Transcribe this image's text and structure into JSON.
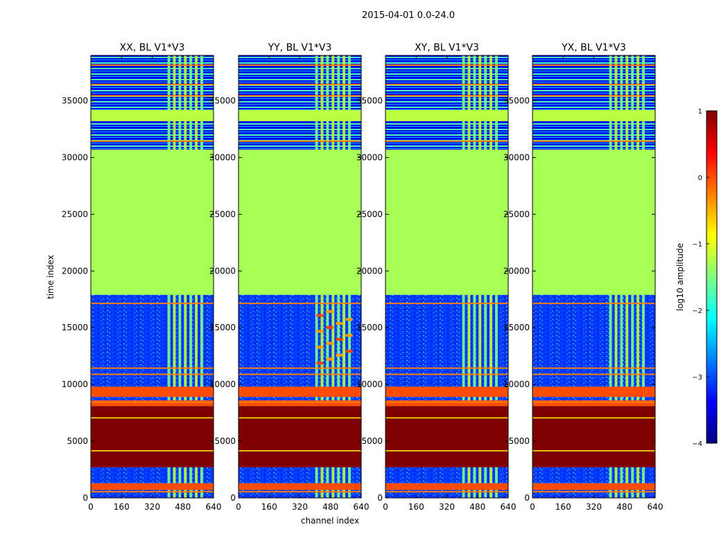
{
  "chart_data": {
    "type": "heatmap",
    "title": "2015-04-01 0.0-24.0",
    "xlabel": "channel index",
    "ylabel": "time index",
    "xlim": [
      0,
      640
    ],
    "ylim": [
      0,
      39000
    ],
    "xticks": [
      0,
      160,
      320,
      480,
      640
    ],
    "yticks": [
      0,
      5000,
      10000,
      15000,
      20000,
      25000,
      30000,
      35000
    ],
    "colorbar": {
      "label": "log10 amplitude",
      "range": [
        -4,
        1
      ],
      "ticks": [
        1,
        0,
        -1,
        -2,
        -3,
        -4
      ],
      "colormap": [
        "#00007f",
        "#0000ff",
        "#007fff",
        "#00ffff",
        "#7fff7f",
        "#ffff00",
        "#ff7f00",
        "#ff0000",
        "#7f0000"
      ]
    },
    "band_channels": [
      400,
      600
    ],
    "panels": [
      {
        "title": "XX, BL V1*V3",
        "name": "XX"
      },
      {
        "title": "YY, BL V1*V3",
        "name": "YY"
      },
      {
        "title": "XY, BL V1*V3",
        "name": "XY"
      },
      {
        "title": "YX, BL V1*V3",
        "name": "YX"
      }
    ],
    "time_regions": [
      {
        "from": 0,
        "to": 700,
        "level": -2.8,
        "desc": "noise"
      },
      {
        "from": 700,
        "to": 1300,
        "level": 0.0,
        "desc": "flag band"
      },
      {
        "from": 1300,
        "to": 2700,
        "level": -2.8,
        "desc": "noise"
      },
      {
        "from": 2700,
        "to": 8100,
        "level": 1.0,
        "desc": "saturated"
      },
      {
        "from": 8100,
        "to": 8600,
        "level": 0.0,
        "desc": "flag band"
      },
      {
        "from": 8600,
        "to": 8900,
        "level": -2.9,
        "desc": "noise"
      },
      {
        "from": 8900,
        "to": 9800,
        "level": 0.0,
        "desc": "flag band"
      },
      {
        "from": 9800,
        "to": 10600,
        "level": -3.0,
        "desc": "noise"
      },
      {
        "from": 10600,
        "to": 17900,
        "level": -2.6,
        "desc": "noise"
      },
      {
        "from": 17900,
        "to": 30700,
        "level": -1.3,
        "desc": "constant"
      },
      {
        "from": 30700,
        "to": 33200,
        "level": -3.0,
        "desc": "striped"
      },
      {
        "from": 33200,
        "to": 34200,
        "level": -1.2,
        "desc": "constant"
      },
      {
        "from": 34200,
        "to": 39000,
        "level": -3.0,
        "desc": "striped"
      }
    ]
  }
}
